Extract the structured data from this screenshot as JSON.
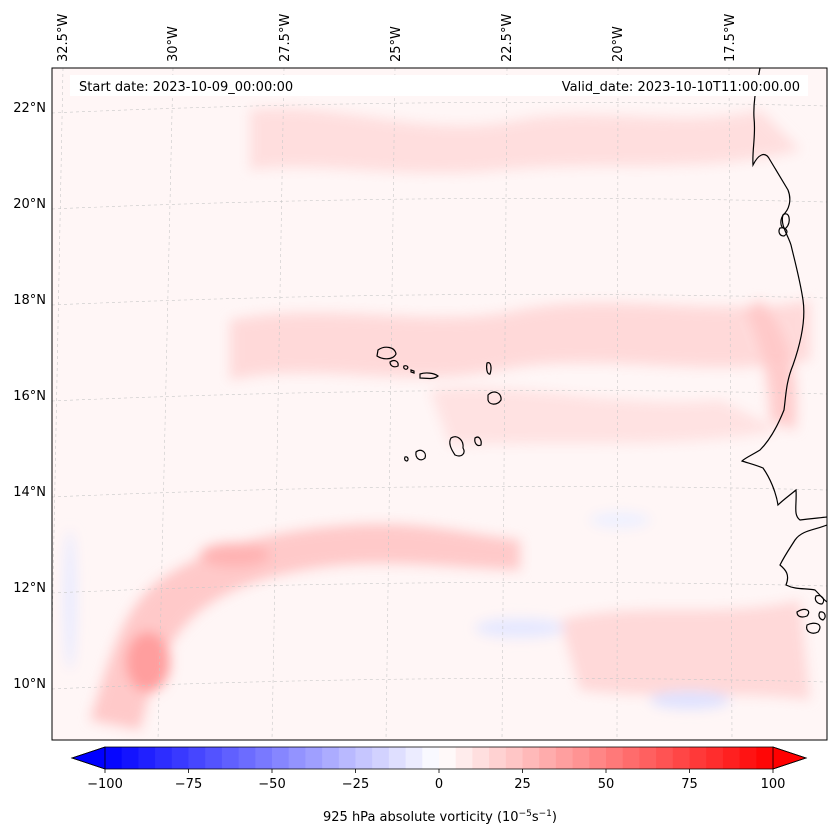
{
  "banner": {
    "start_label": "Start date: 2023-10-09_00:00:00",
    "valid_label": "Valid_date: 2023-10-10T11:00:00.00"
  },
  "map": {
    "projection": "conic",
    "gridlines": "dashed",
    "longitude_labels": [
      "32.5°W",
      "30°W",
      "27.5°W",
      "25°W",
      "22.5°W",
      "20°W",
      "17.5°W"
    ],
    "latitude_labels": [
      "22°N",
      "20°N",
      "18°N",
      "16°N",
      "14°N",
      "12°N",
      "10°N"
    ],
    "features": [
      "Cape Verde islands",
      "West African coastline"
    ]
  },
  "colorbar": {
    "label_main": "925 hPa absolute vorticity (10",
    "label_exp1": "−5",
    "label_mid": "s",
    "label_exp2": "−1",
    "label_end": ")",
    "colormap": "bwr",
    "min": -100,
    "max": 100,
    "extend": "both",
    "tick_labels": [
      "−100",
      "−75",
      "−50",
      "−25",
      "0",
      "25",
      "50",
      "75",
      "100"
    ],
    "low_color": "#0000ff",
    "mid_color": "#ffffff",
    "high_color": "#ff0000"
  }
}
